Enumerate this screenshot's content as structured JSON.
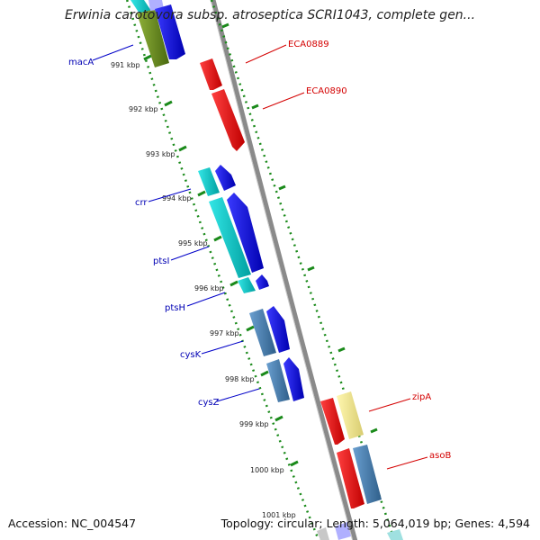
{
  "title": "Erwinia carotovora subsp. atroseptica SCRI1043, complete gen...",
  "footer": {
    "accession": "Accession: NC_004547",
    "topology": "Topology: circular; Length: 5,064,019 bp; Genes: 4,594"
  },
  "colors": {
    "backbone": "#8c8c8c",
    "dotted_track": "#1a8a1a",
    "label_left": "#0000b4",
    "label_right": "#d40000",
    "kbp_text": "#222222"
  },
  "kbp_ticks": [
    "991 kbp",
    "992 kbp",
    "993 kbp",
    "994 kbp",
    "995 kbp",
    "996 kbp",
    "997 kbp",
    "998 kbp",
    "999 kbp",
    "1000 kbp",
    "1001 kbp"
  ],
  "left_labels": [
    "macA",
    "crr",
    "ptsI",
    "ptsH",
    "cysK",
    "cysZ"
  ],
  "right_labels": [
    "ECA0889",
    "ECA0890",
    "zipA",
    "asoB"
  ],
  "genes": [
    {
      "name": "macA-block",
      "color": "#6b8e23",
      "strand": "neg"
    },
    {
      "name": "ECA0889",
      "color": "#ff0000",
      "strand": "neg"
    },
    {
      "name": "ECA0890",
      "color": "#ff0000",
      "strand": "neg"
    },
    {
      "name": "crr",
      "color": "#00c8c8",
      "strand": "neg"
    },
    {
      "name": "ptsI",
      "color": "#00c8c8",
      "strand": "neg"
    },
    {
      "name": "ptsH",
      "color": "#00c8c8",
      "strand": "neg"
    },
    {
      "name": "cysK",
      "color": "#4682b4",
      "strand": "neg"
    },
    {
      "name": "cysZ",
      "color": "#4682b4",
      "strand": "neg"
    },
    {
      "name": "zipA",
      "color": "#f0e68c",
      "strand": "neg"
    },
    {
      "name": "asoB",
      "color": "#4682b4",
      "strand": "neg"
    },
    {
      "name": "red-lower",
      "color": "#ff0000",
      "strand": "neg"
    }
  ]
}
